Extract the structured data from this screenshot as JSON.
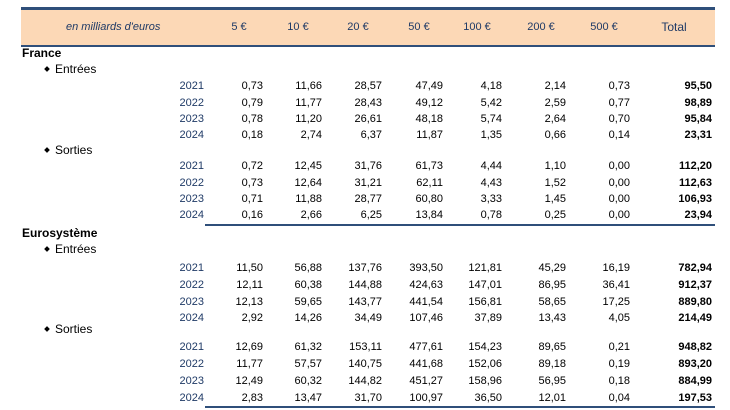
{
  "header": {
    "unit": "en milliards d'euros",
    "columns": [
      "5 €",
      "10 €",
      "20 €",
      "50 €",
      "100 €",
      "200 €",
      "500 €"
    ],
    "total": "Total"
  },
  "sections": [
    {
      "name": "France",
      "groups": [
        {
          "label": "Entrées",
          "rows": [
            {
              "year": "2021",
              "values": [
                "0,73",
                "11,66",
                "28,57",
                "47,49",
                "4,18",
                "2,14",
                "0,73"
              ],
              "total": "95,50"
            },
            {
              "year": "2022",
              "values": [
                "0,79",
                "11,77",
                "28,43",
                "49,12",
                "5,42",
                "2,59",
                "0,77"
              ],
              "total": "98,89"
            },
            {
              "year": "2023",
              "values": [
                "0,78",
                "11,20",
                "26,61",
                "48,18",
                "5,74",
                "2,64",
                "0,70"
              ],
              "total": "95,84"
            },
            {
              "year": "2024",
              "values": [
                "0,18",
                "2,74",
                "6,37",
                "11,87",
                "1,35",
                "0,66",
                "0,14"
              ],
              "total": "23,31"
            }
          ]
        },
        {
          "label": "Sorties",
          "rows": [
            {
              "year": "2021",
              "values": [
                "0,72",
                "12,45",
                "31,76",
                "61,73",
                "4,44",
                "1,10",
                "0,00"
              ],
              "total": "112,20"
            },
            {
              "year": "2022",
              "values": [
                "0,73",
                "12,64",
                "31,21",
                "62,11",
                "4,43",
                "1,52",
                "0,00"
              ],
              "total": "112,63"
            },
            {
              "year": "2023",
              "values": [
                "0,71",
                "11,88",
                "28,77",
                "60,80",
                "3,33",
                "1,45",
                "0,00"
              ],
              "total": "106,93"
            },
            {
              "year": "2024",
              "values": [
                "0,16",
                "2,66",
                "6,25",
                "13,84",
                "0,78",
                "0,25",
                "0,00"
              ],
              "total": "23,94"
            }
          ]
        }
      ]
    },
    {
      "name": "Eurosystème",
      "groups": [
        {
          "label": "Entrées",
          "rows": [
            {
              "year": "2021",
              "values": [
                "11,50",
                "56,88",
                "137,76",
                "393,50",
                "121,81",
                "45,29",
                "16,19"
              ],
              "total": "782,94"
            },
            {
              "year": "2022",
              "values": [
                "12,11",
                "60,38",
                "144,88",
                "424,63",
                "147,01",
                "86,95",
                "36,41"
              ],
              "total": "912,37"
            },
            {
              "year": "2023",
              "values": [
                "12,13",
                "59,65",
                "143,77",
                "441,54",
                "156,81",
                "58,65",
                "17,25"
              ],
              "total": "889,80"
            },
            {
              "year": "2024",
              "values": [
                "2,92",
                "14,26",
                "34,49",
                "107,46",
                "37,89",
                "13,43",
                "4,05"
              ],
              "total": "214,49"
            }
          ]
        },
        {
          "label": "Sorties",
          "rows": [
            {
              "year": "2021",
              "values": [
                "12,69",
                "61,32",
                "153,11",
                "477,61",
                "154,23",
                "89,65",
                "0,21"
              ],
              "total": "948,82"
            },
            {
              "year": "2022",
              "values": [
                "11,77",
                "57,57",
                "140,75",
                "441,68",
                "152,06",
                "89,18",
                "0,19"
              ],
              "total": "893,20"
            },
            {
              "year": "2023",
              "values": [
                "12,49",
                "60,32",
                "144,82",
                "451,27",
                "158,96",
                "56,95",
                "0,18"
              ],
              "total": "884,99"
            },
            {
              "year": "2024",
              "values": [
                "2,83",
                "13,47",
                "31,70",
                "100,97",
                "36,50",
                "12,01",
                "0,04"
              ],
              "total": "197,53"
            }
          ]
        }
      ]
    }
  ]
}
